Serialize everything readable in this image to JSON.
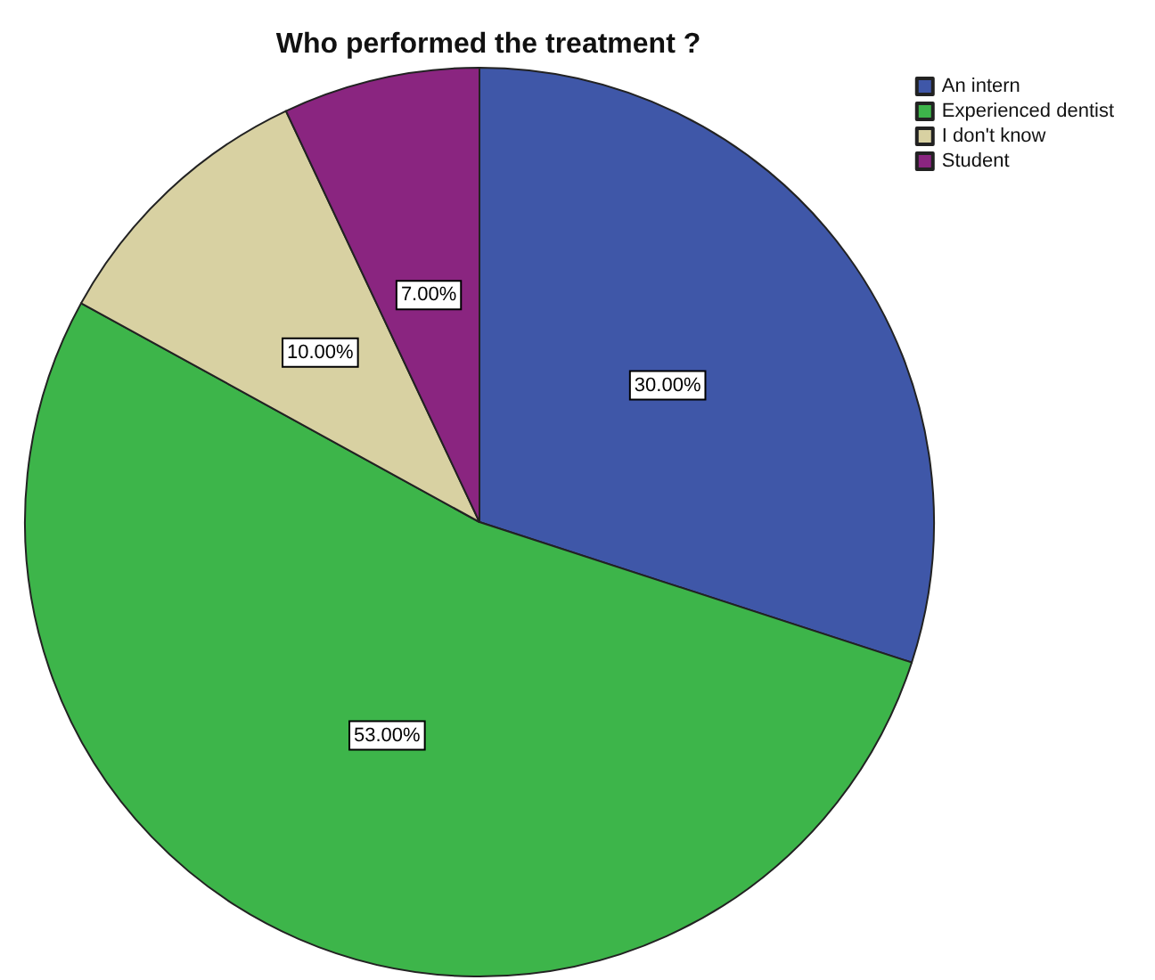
{
  "chart_data": {
    "type": "pie",
    "title": "Who performed the treatment ?",
    "categories": [
      "An intern",
      "Experienced dentist",
      "I don't know",
      "Student"
    ],
    "values": [
      30,
      53,
      10,
      7
    ],
    "colors": [
      "#3f57a8",
      "#3db54a",
      "#d8d1a2",
      "#8a2580"
    ],
    "value_labels": [
      "30.00%",
      "53.00%",
      "10.00%",
      "7.00%"
    ],
    "legend": "top right"
  }
}
